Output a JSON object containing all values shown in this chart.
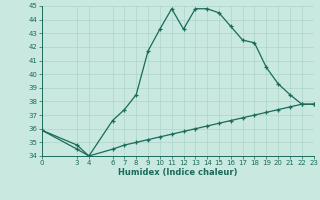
{
  "xlabel": "Humidex (Indice chaleur)",
  "ylabel": "",
  "background_color": "#c8e8e0",
  "line_color": "#1a6b5a",
  "x_ticks": [
    0,
    3,
    4,
    6,
    7,
    8,
    9,
    10,
    11,
    12,
    13,
    14,
    15,
    16,
    17,
    18,
    19,
    20,
    21,
    22,
    23
  ],
  "xlim": [
    0,
    23
  ],
  "ylim": [
    34,
    45
  ],
  "y_ticks": [
    34,
    35,
    36,
    37,
    38,
    39,
    40,
    41,
    42,
    43,
    44,
    45
  ],
  "curve1_x": [
    0,
    3,
    4,
    6,
    7,
    8,
    9,
    10,
    11,
    12,
    13,
    14,
    15,
    16,
    17,
    18,
    19,
    20,
    21,
    22,
    23
  ],
  "curve1_y": [
    35.9,
    34.8,
    34.0,
    36.6,
    37.4,
    38.5,
    41.7,
    43.3,
    44.8,
    43.3,
    44.8,
    44.8,
    44.5,
    43.5,
    42.5,
    42.3,
    40.5,
    39.3,
    38.5,
    37.8,
    37.8
  ],
  "curve2_x": [
    0,
    3,
    4,
    6,
    7,
    8,
    9,
    10,
    11,
    12,
    13,
    14,
    15,
    16,
    17,
    18,
    19,
    20,
    21,
    22,
    23
  ],
  "curve2_y": [
    35.9,
    34.5,
    34.0,
    34.5,
    34.8,
    35.0,
    35.2,
    35.4,
    35.6,
    35.8,
    36.0,
    36.2,
    36.4,
    36.6,
    36.8,
    37.0,
    37.2,
    37.4,
    37.6,
    37.8,
    37.8
  ],
  "grid_color": "#aed4cc",
  "font_color": "#1a6b5a",
  "xlabel_fontsize": 6,
  "tick_fontsize": 5,
  "linewidth": 0.9,
  "markersize": 3.5
}
